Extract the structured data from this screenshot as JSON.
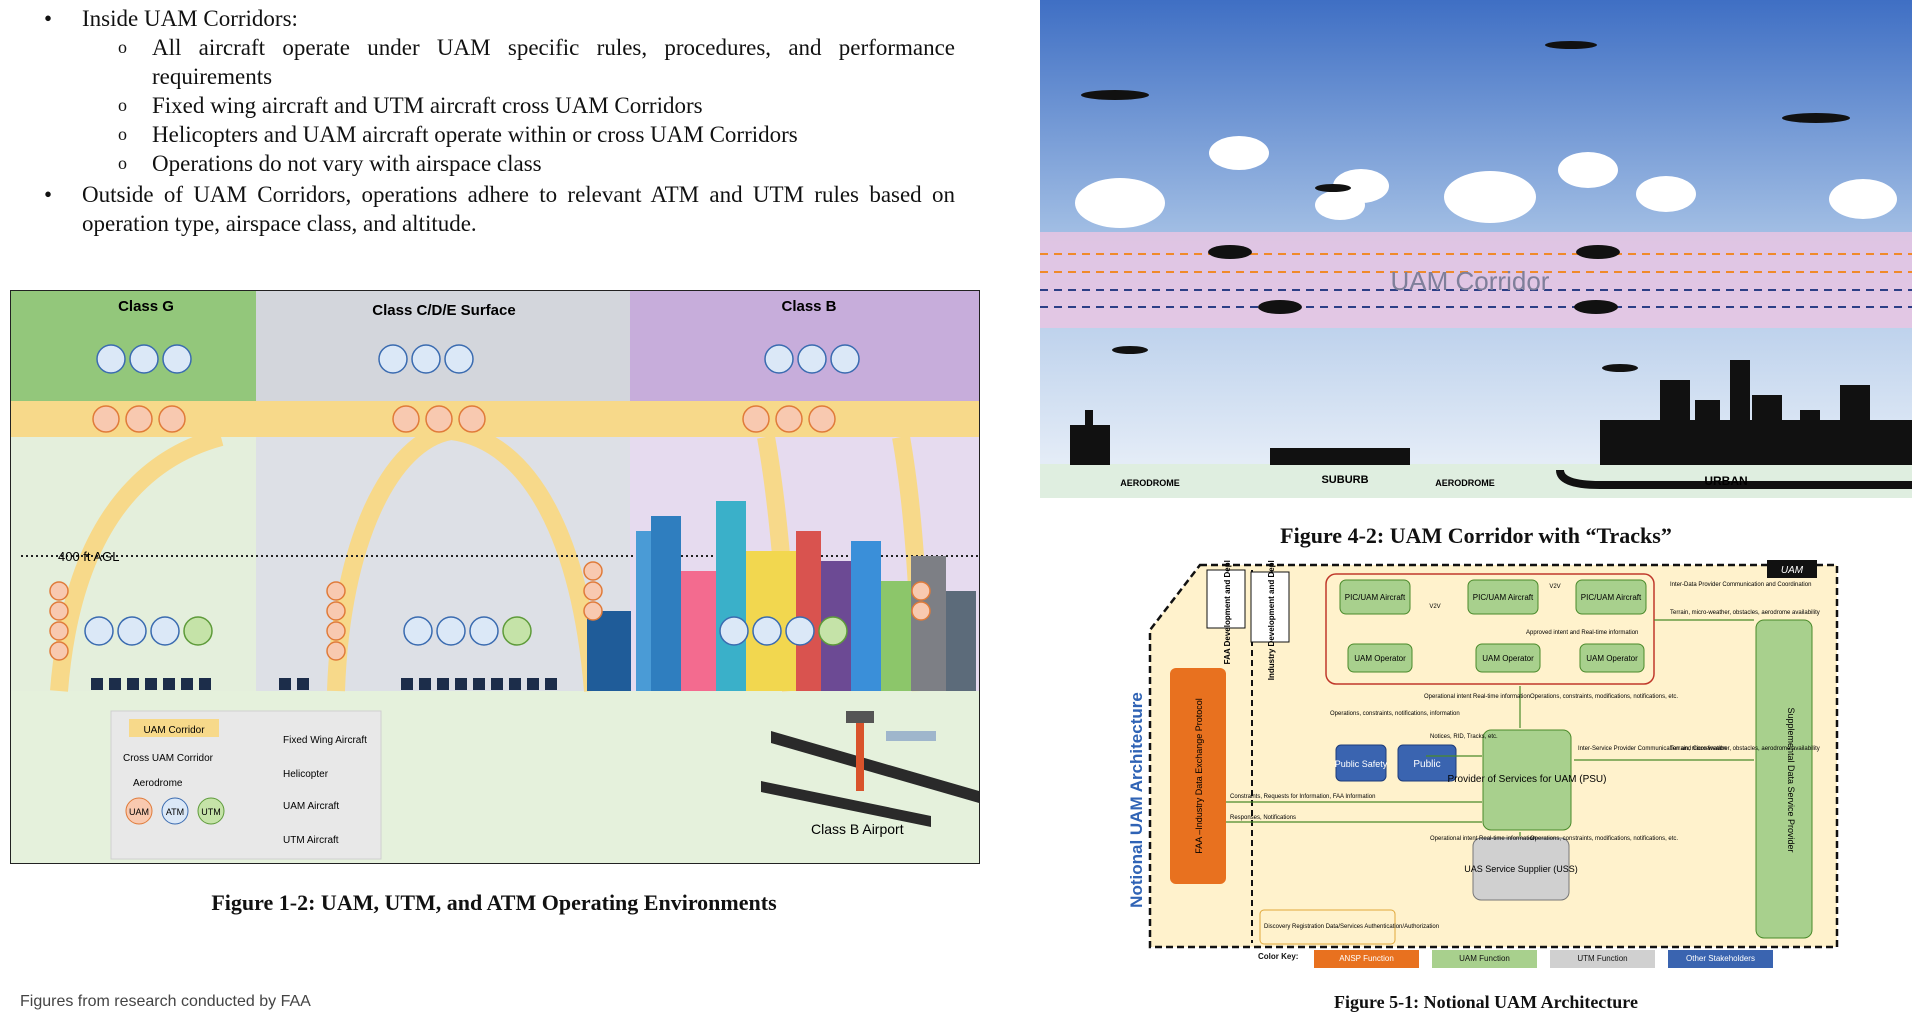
{
  "bullets": {
    "inside_heading": "Inside UAM Corridors:",
    "inside_items": [
      "All aircraft operate under UAM specific rules, procedures, and performance requirements",
      "Fixed wing aircraft and UTM aircraft cross UAM Corridors",
      "Helicopters and UAM aircraft operate within or cross UAM Corridors",
      "Operations do not vary with airspace class"
    ],
    "outside_text": "Outside of UAM Corridors, operations adhere to relevant ATM and UTM rules based on operation type, airspace class, and altitude."
  },
  "fig12": {
    "class_g": "Class G",
    "class_cde": "Class C/D/E Surface",
    "class_b": "Class B",
    "agl": "400 ft AGL",
    "legend": {
      "corridor": "UAM Corridor",
      "cross": "Cross UAM Corridor",
      "aerodrome": "Aerodrome",
      "uam": "UAM",
      "atm": "ATM",
      "utm": "UTM",
      "fixed_wing": "Fixed Wing Aircraft",
      "helicopter": "Helicopter",
      "uam_aircraft": "UAM Aircraft",
      "utm_aircraft": "UTM Aircraft"
    },
    "airport": "Class B Airport",
    "caption": "Figure 1-2: UAM, UTM, and ATM Operating Environments"
  },
  "fig42": {
    "corridor": "UAM Corridor",
    "aerodrome1": "AERODROME",
    "suburb": "SUBURB",
    "aerodrome2": "AERODROME",
    "urban": "URBAN",
    "caption": "Figure 4-2: UAM Corridor with “Tracks”"
  },
  "fig51": {
    "uam_tag": "UAM",
    "notional": "Notional UAM Architecture",
    "faa_dev": "FAA Development and Deployment",
    "ind_dev": "Industry Development and Deployment",
    "fidep": "FAA –Industry Data Exchange Protocol",
    "pic1": "PIC/UAM Aircraft",
    "pic2": "PIC/UAM Aircraft",
    "pic3": "PIC/UAM Aircraft",
    "op1": "UAM Operator",
    "op2": "UAM Operator",
    "op3": "UAM Operator",
    "v2v1": "V2V",
    "v2v2": "V2V",
    "approved": "Approved intent and Real-time information",
    "inter_dp": "Inter-Data Provider Communication and Coordination",
    "terrain1": "Terrain, micro-weather, obstacles, aerodrome availability",
    "op_intent1": "Operational intent Real-time information",
    "ops_constraints1": "Operations, constraints, modifications, notifications, etc.",
    "ops_constraints_info": "Operations, constraints, notifications, information",
    "public_safety": "Public Safety",
    "public": "Public",
    "notices": "Notices, RID, Tracks, etc.",
    "psu": "Provider of Services for UAM (PSU)",
    "inter_sp": "Inter-Service Provider Communication and Coordination",
    "terrain2": "Terrain, micro-weather, obstacles, aerodrome availability",
    "constraints_req": "Constraints, Requests for Information, FAA Information",
    "responses": "Responses, Notifications",
    "op_intent2": "Operational intent Real-time information",
    "ops_constraints2": "Operations, constraints, modifications, notifications, etc.",
    "uss": "UAS Service Supplier (USS)",
    "supplemental": "Supplemental Data Service Provider",
    "discovery": "Discovery Registration Data/Services Authentication/Authorization",
    "color_key": "Color Key:",
    "key_ansp": "ANSP Function",
    "key_uam": "UAM Function",
    "key_utm": "UTM Function",
    "key_other": "Other Stakeholders",
    "caption": "Figure 5-1: Notional UAM Architecture"
  },
  "source": "Figures from research conducted by FAA",
  "colors": {
    "class_g": "#93c77b",
    "class_cde": "#c9ccd3",
    "class_b": "#b79cc9",
    "corridor": "#f7d98a",
    "ansp": "#e8711f",
    "uam": "#a8d08d",
    "utm": "#d0d0d0",
    "other": "#3a64b0",
    "paper": "#fff2cc"
  }
}
